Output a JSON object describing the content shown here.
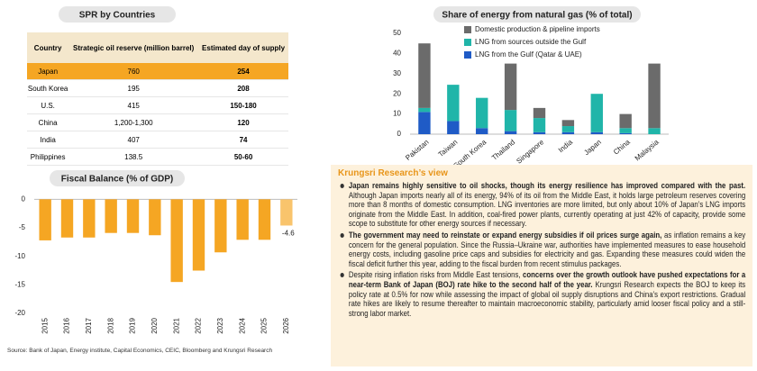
{
  "table": {
    "title": "SPR by Countries",
    "columns": [
      "Country",
      "Strategic oil reserve (million barrel)",
      "Estimated day of supply"
    ],
    "rows": [
      [
        "Japan",
        "760",
        "254"
      ],
      [
        "South Korea",
        "195",
        "208"
      ],
      [
        "U.S.",
        "415",
        "150-180"
      ],
      [
        "China",
        "1,200-1,300",
        "120"
      ],
      [
        "India",
        "407",
        "74"
      ],
      [
        "Philippines",
        "138.5",
        "50-60"
      ]
    ],
    "highlight_row": 0,
    "highlight_color": "#f5a623",
    "header_color": "#f4e7cc"
  },
  "chart_data": [
    {
      "type": "bar",
      "stacked": true,
      "title": "Share of energy from natural gas (% of total)",
      "categories": [
        "Pakistan",
        "Taiwan",
        "South Korea",
        "Thailand",
        "Singapore",
        "India",
        "Japan",
        "China",
        "Malaysia"
      ],
      "series": [
        {
          "name": "Domestic production & pipeline imports",
          "color": "#6b6b6b",
          "values": [
            32,
            0,
            0,
            23,
            5,
            3,
            0,
            7,
            32
          ]
        },
        {
          "name": "LNG from sources outside the Gulf",
          "color": "#20b5a9",
          "values": [
            2,
            18,
            15,
            10.5,
            7,
            3,
            19,
            2.5,
            3
          ]
        },
        {
          "name": "LNG from the Gulf (Qatar & UAE)",
          "color": "#1f5bc6",
          "values": [
            11,
            6.5,
            3,
            1.5,
            1,
            1,
            1,
            0.5,
            0
          ]
        }
      ],
      "ylim": [
        0,
        50
      ],
      "yticks": [
        0,
        10,
        20,
        30,
        40,
        50
      ],
      "grid": false
    },
    {
      "type": "bar",
      "title": "Fiscal Balance (% of GDP)",
      "categories": [
        "2015",
        "2016",
        "2017",
        "2018",
        "2019",
        "2020",
        "2021",
        "2022",
        "2023",
        "2024",
        "2025",
        "2026"
      ],
      "values": [
        -7.2,
        -6.7,
        -6.7,
        -5.9,
        -5.9,
        -6.3,
        -14.5,
        -12.5,
        -9.3,
        -7.1,
        -7.1,
        -4.6
      ],
      "colors": [
        "#f5a623",
        "#f5a623",
        "#f5a623",
        "#f5a623",
        "#f5a623",
        "#f5a623",
        "#f5a623",
        "#f5a623",
        "#f5a623",
        "#f5a623",
        "#f5a623",
        "#f9c46c"
      ],
      "data_labels": [
        false,
        false,
        false,
        false,
        false,
        false,
        false,
        false,
        false,
        false,
        false,
        true
      ],
      "label_color": "#f5a623",
      "ylim": [
        -20,
        1
      ],
      "yticks": [
        0,
        -5,
        -10,
        -15,
        -20
      ],
      "grid": false
    }
  ],
  "source": "Source: Bank of Japan, Energy institute, Capital Economics, CEIC, Bloomberg and Krungsri Research",
  "view": {
    "title": "Krungsri Research’s view",
    "bullets": [
      [
        {
          "text": "Japan remains highly sensitive to oil shocks, though its energy resilience has improved compared with the past.",
          "bold": true
        },
        {
          "text": " Although Japan imports nearly all of its energy, 94% of its oil from the Middle East, it holds large petroleum reserves covering more than 8 months of domestic consumption. LNG inventories are more limited, but only about 10% of Japan’s LNG imports originate from the Middle East. In addition, coal-fired power plants, currently operating at just 42% of capacity, provide some scope to substitute for other energy sources if necessary.",
          "bold": false
        }
      ],
      [
        {
          "text": "The government may need to reinstate or expand energy subsidies if oil prices surge again,",
          "bold": true
        },
        {
          "text": " as inflation remains a key concern for the general population. Since the Russia–Ukraine war, authorities have implemented measures to ease household energy costs, including gasoline price caps and subsidies for electricity and gas. Expanding these measures could widen the fiscal deficit further this year, adding to the fiscal burden from recent stimulus packages.",
          "bold": false
        }
      ],
      [
        {
          "text": "Despite rising inflation risks from Middle East tensions, ",
          "bold": false
        },
        {
          "text": "concerns over the growth outlook have pushed expectations for a near-term Bank of Japan (BOJ) rate hike to the second half of the year.",
          "bold": true
        },
        {
          "text": " Krungsri Research expects the BOJ to keep its policy rate at 0.5% for now while assessing the impact of global oil supply disruptions and China’s export restrictions. Gradual rate hikes are likely to resume thereafter to maintain macroeconomic stability, particularly amid looser fiscal policy and a still-strong labor market.",
          "bold": false
        }
      ]
    ]
  }
}
